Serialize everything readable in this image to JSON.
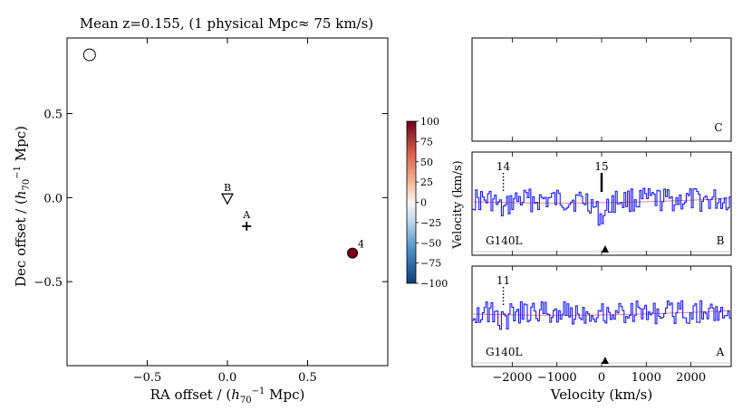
{
  "title": "Mean z=0.155, (1 physical Mpc≈ 75 km/s)",
  "colorbar": {
    "ticks": [
      100,
      75,
      50,
      25,
      0,
      -25,
      -50,
      -75,
      -100
    ],
    "range": [
      -100,
      100
    ],
    "colormap": [
      "#0b3d7a",
      "#4a8dc4",
      "#c9dfee",
      "#f7f7f7",
      "#f6c3a6",
      "#d95f4b",
      "#6e0220"
    ]
  },
  "chart_data": [
    {
      "type": "scatter",
      "xlabel": "RA offset / (h70⁻¹ Mpc)",
      "ylabel": "Dec offset  / (h70⁻¹ Mpc)",
      "xlim": [
        -1.0,
        1.0
      ],
      "ylim": [
        -1.0,
        0.95
      ],
      "xticks": [
        -0.5,
        0.0,
        0.5
      ],
      "yticks": [
        0.5,
        0.0,
        -0.5
      ],
      "tick_labels_x": [
        "−0.5",
        "0.0",
        "0.5"
      ],
      "tick_labels_y": [
        "0.5",
        "0.0",
        "−0.5"
      ],
      "points": [
        {
          "x": -0.86,
          "y": 0.85,
          "marker": "open-circle",
          "label": "",
          "color": "#ffffff"
        },
        {
          "x": 0.0,
          "y": -0.01,
          "marker": "open-triangle-down",
          "label": "B",
          "color": "#ffffff"
        },
        {
          "x": 0.12,
          "y": -0.17,
          "marker": "plus",
          "label": "A",
          "color": "#000000"
        },
        {
          "x": 0.78,
          "y": -0.33,
          "marker": "filled-circle",
          "label": "4",
          "color": "#7a0019"
        }
      ]
    },
    {
      "type": "line",
      "panel": "C",
      "xlim": [
        -2900,
        2900
      ],
      "label": "C",
      "instrument": "",
      "series": []
    },
    {
      "type": "line",
      "panel": "B",
      "ylabel": "Velocity (km/s)",
      "xlim": [
        -2900,
        2900
      ],
      "label": "B",
      "instrument": "G140L",
      "markers": [
        {
          "velocity": -2200,
          "label": "14",
          "style": "dotted"
        },
        {
          "velocity": 0,
          "label": "15",
          "style": "solid"
        }
      ],
      "continuum_color": "#f08080",
      "spectrum_color": "#1a1aff"
    },
    {
      "type": "line",
      "panel": "A",
      "xlabel": "Velocity (km/s)",
      "xlim": [
        -2900,
        2900
      ],
      "xticks": [
        -2000,
        -1000,
        0,
        1000,
        2000
      ],
      "tick_labels_x": [
        "−2000",
        "−1000",
        "0",
        "1000",
        "2000"
      ],
      "label": "A",
      "instrument": "G140L",
      "markers": [
        {
          "velocity": -2200,
          "label": "11",
          "style": "dotted"
        }
      ],
      "continuum_color": "#f08080",
      "spectrum_color": "#1a1aff"
    }
  ]
}
